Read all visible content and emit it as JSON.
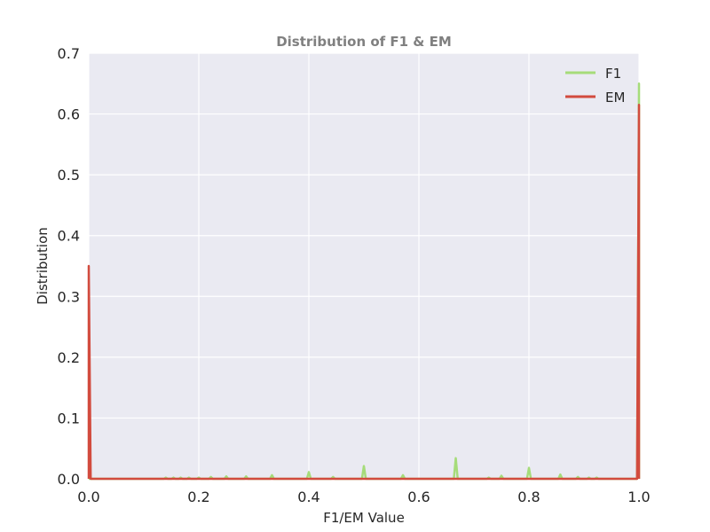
{
  "chart_data": {
    "type": "line",
    "title": "Distribution of F1 & EM",
    "xlabel": "F1/EM Value",
    "ylabel": "Distribution",
    "xlim": [
      0.0,
      1.0
    ],
    "ylim": [
      0.0,
      0.7
    ],
    "xticks": [
      "0.0",
      "0.2",
      "0.4",
      "0.6",
      "0.8",
      "1.0"
    ],
    "yticks": [
      "0.0",
      "0.1",
      "0.2",
      "0.3",
      "0.4",
      "0.5",
      "0.6",
      "0.7"
    ],
    "grid": true,
    "legend_position": "top-right",
    "background_color": "#EAEAF2",
    "series": [
      {
        "name": "F1",
        "color": "#A6DC7A",
        "spikes": [
          {
            "x": 0.0,
            "y": 0.0
          },
          {
            "x": 0.14,
            "y": 0.002
          },
          {
            "x": 0.154,
            "y": 0.002
          },
          {
            "x": 0.167,
            "y": 0.002
          },
          {
            "x": 0.182,
            "y": 0.002
          },
          {
            "x": 0.2,
            "y": 0.002
          },
          {
            "x": 0.222,
            "y": 0.003
          },
          {
            "x": 0.25,
            "y": 0.004
          },
          {
            "x": 0.286,
            "y": 0.004
          },
          {
            "x": 0.333,
            "y": 0.006
          },
          {
            "x": 0.4,
            "y": 0.011
          },
          {
            "x": 0.444,
            "y": 0.003
          },
          {
            "x": 0.5,
            "y": 0.021
          },
          {
            "x": 0.571,
            "y": 0.006
          },
          {
            "x": 0.667,
            "y": 0.034
          },
          {
            "x": 0.727,
            "y": 0.002
          },
          {
            "x": 0.75,
            "y": 0.005
          },
          {
            "x": 0.8,
            "y": 0.018
          },
          {
            "x": 0.857,
            "y": 0.007
          },
          {
            "x": 0.889,
            "y": 0.003
          },
          {
            "x": 0.909,
            "y": 0.002
          },
          {
            "x": 0.923,
            "y": 0.002
          },
          {
            "x": 1.0,
            "y": 0.65
          }
        ]
      },
      {
        "name": "EM",
        "color": "#D24B3E",
        "spikes": [
          {
            "x": 0.0,
            "y": 0.35
          },
          {
            "x": 1.0,
            "y": 0.615
          }
        ]
      }
    ]
  }
}
